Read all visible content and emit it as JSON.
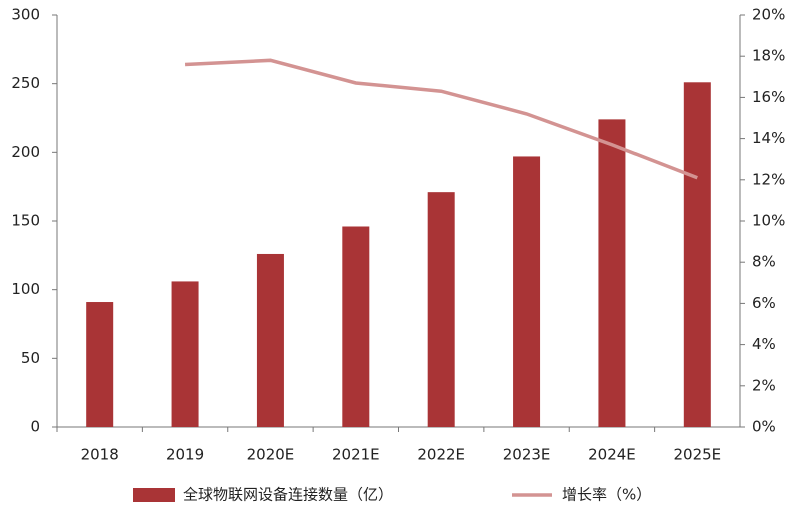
{
  "chart_data": {
    "type": "bar-line",
    "categories": [
      "2018",
      "2019",
      "2020E",
      "2021E",
      "2022E",
      "2023E",
      "2024E",
      "2025E"
    ],
    "series": [
      {
        "name": "全球物联网设备连接数量（亿）",
        "type": "bar",
        "color": "#a93436",
        "values": [
          91,
          106,
          126,
          146,
          171,
          197,
          224,
          251
        ]
      },
      {
        "name": "增长率（%）",
        "type": "line",
        "axis": "y2",
        "color": "#d39392",
        "values": [
          null,
          17.6,
          17.8,
          16.7,
          16.3,
          15.2,
          13.7,
          12.1
        ]
      }
    ],
    "ylim": [
      0,
      300
    ],
    "yticks": [
      0,
      50,
      100,
      150,
      200,
      250,
      300
    ],
    "y2lim": [
      0,
      20
    ],
    "y2ticks": [
      {
        "value": 0,
        "label": "0%"
      },
      {
        "value": 2,
        "label": "2%"
      },
      {
        "value": 4,
        "label": "4%"
      },
      {
        "value": 6,
        "label": "6%"
      },
      {
        "value": 8,
        "label": "8%"
      },
      {
        "value": 10,
        "label": "10%"
      },
      {
        "value": 12,
        "label": "12%"
      },
      {
        "value": 14,
        "label": "14%"
      },
      {
        "value": 16,
        "label": "16%"
      },
      {
        "value": 18,
        "label": "18%"
      },
      {
        "value": 20,
        "label": "20%"
      }
    ],
    "legend": "bottom"
  }
}
